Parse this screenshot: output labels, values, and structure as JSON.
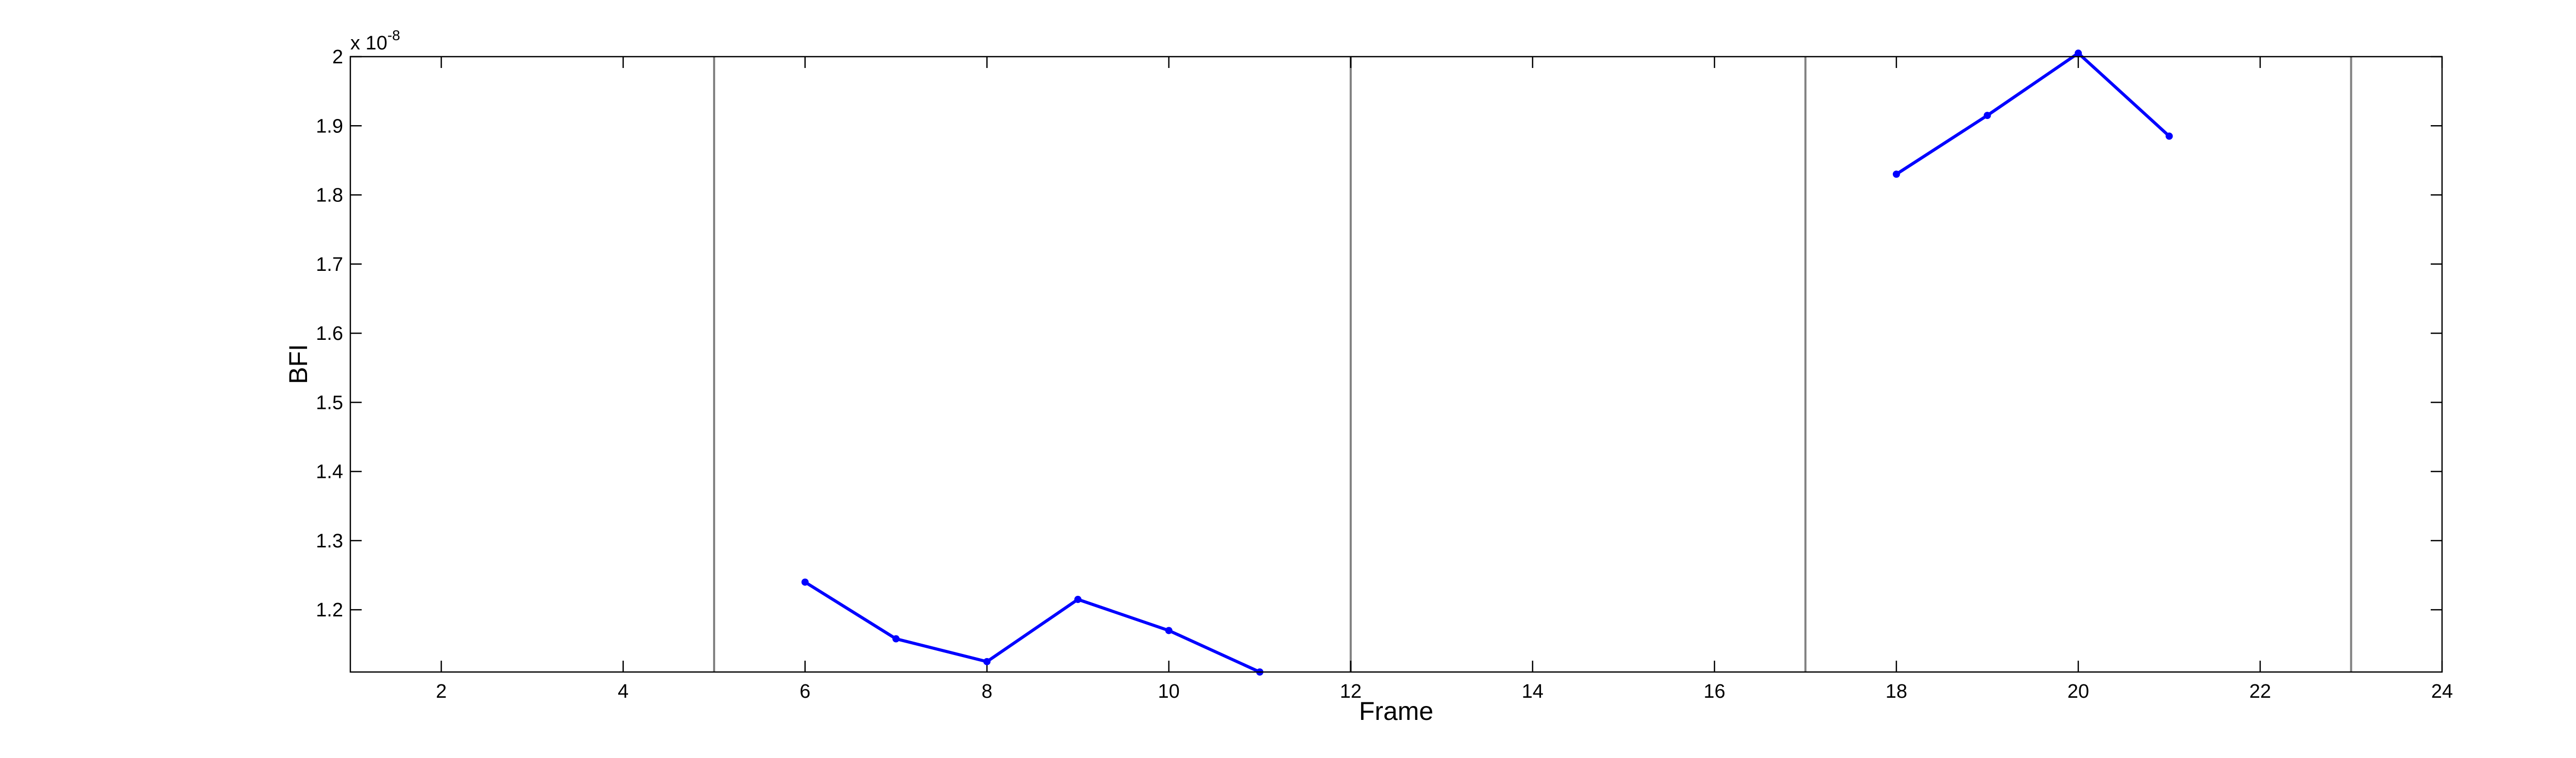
{
  "chart_data": {
    "type": "line",
    "xlabel": "Frame",
    "ylabel": "BFI",
    "y_exponent_label": "x 10",
    "y_exponent_power": "-8",
    "xlim": [
      1,
      24
    ],
    "ylim": [
      1.11,
      2.0
    ],
    "xticks": [
      2,
      4,
      6,
      8,
      10,
      12,
      14,
      16,
      18,
      20,
      22,
      24
    ],
    "yticks": [
      1.2,
      1.3,
      1.4,
      1.5,
      1.6,
      1.7,
      1.8,
      1.9,
      2.0
    ],
    "ytick_labels": [
      "1.2",
      "1.3",
      "1.4",
      "1.5",
      "1.6",
      "1.7",
      "1.8",
      "1.9",
      "2"
    ],
    "grid": false,
    "legend": null,
    "series_color": "#0000ff",
    "vertical_lines": [
      5,
      12,
      17,
      23
    ],
    "vertical_line_color": "#808080",
    "series": [
      {
        "x": [
          6,
          7,
          8,
          9,
          10,
          11
        ],
        "y": [
          1.24,
          1.158,
          1.125,
          1.215,
          1.17,
          1.11
        ]
      },
      {
        "x": [
          18,
          19,
          20,
          21
        ],
        "y": [
          1.83,
          1.915,
          2.005,
          1.885
        ]
      }
    ]
  }
}
